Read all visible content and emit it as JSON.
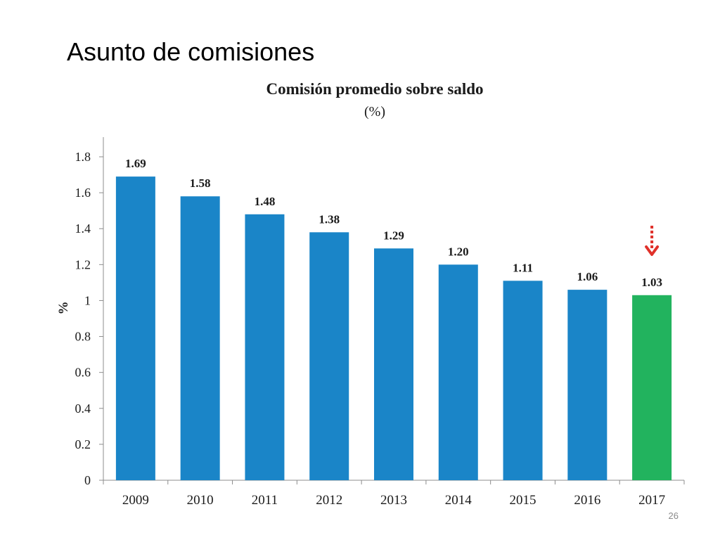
{
  "slide": {
    "title": "Asunto de comisiones",
    "page_number": "26"
  },
  "chart_data": {
    "type": "bar",
    "title": "Comisión promedio sobre saldo",
    "subtitle": "(%)",
    "xlabel": "",
    "ylabel": "%",
    "categories": [
      "2009",
      "2010",
      "2011",
      "2012",
      "2013",
      "2014",
      "2015",
      "2016",
      "2017"
    ],
    "values": [
      1.69,
      1.58,
      1.48,
      1.38,
      1.29,
      1.2,
      1.11,
      1.06,
      1.03
    ],
    "data_labels": [
      "1.69",
      "1.58",
      "1.48",
      "1.38",
      "1.29",
      "1.20",
      "1.11",
      "1.06",
      "1.03"
    ],
    "ylim": [
      0,
      1.8
    ],
    "yticks": [
      "0",
      "0.2",
      "0.4",
      "0.6",
      "0.8",
      "1",
      "1.2",
      "1.4",
      "1.6",
      "1.8"
    ],
    "grid": false,
    "colors": {
      "bar": "#1a85c8",
      "highlight_bar": "#22b35e",
      "marker": "#e0312a"
    },
    "highlight_category": "2017",
    "marker_icon": "down-arrow-icon"
  }
}
